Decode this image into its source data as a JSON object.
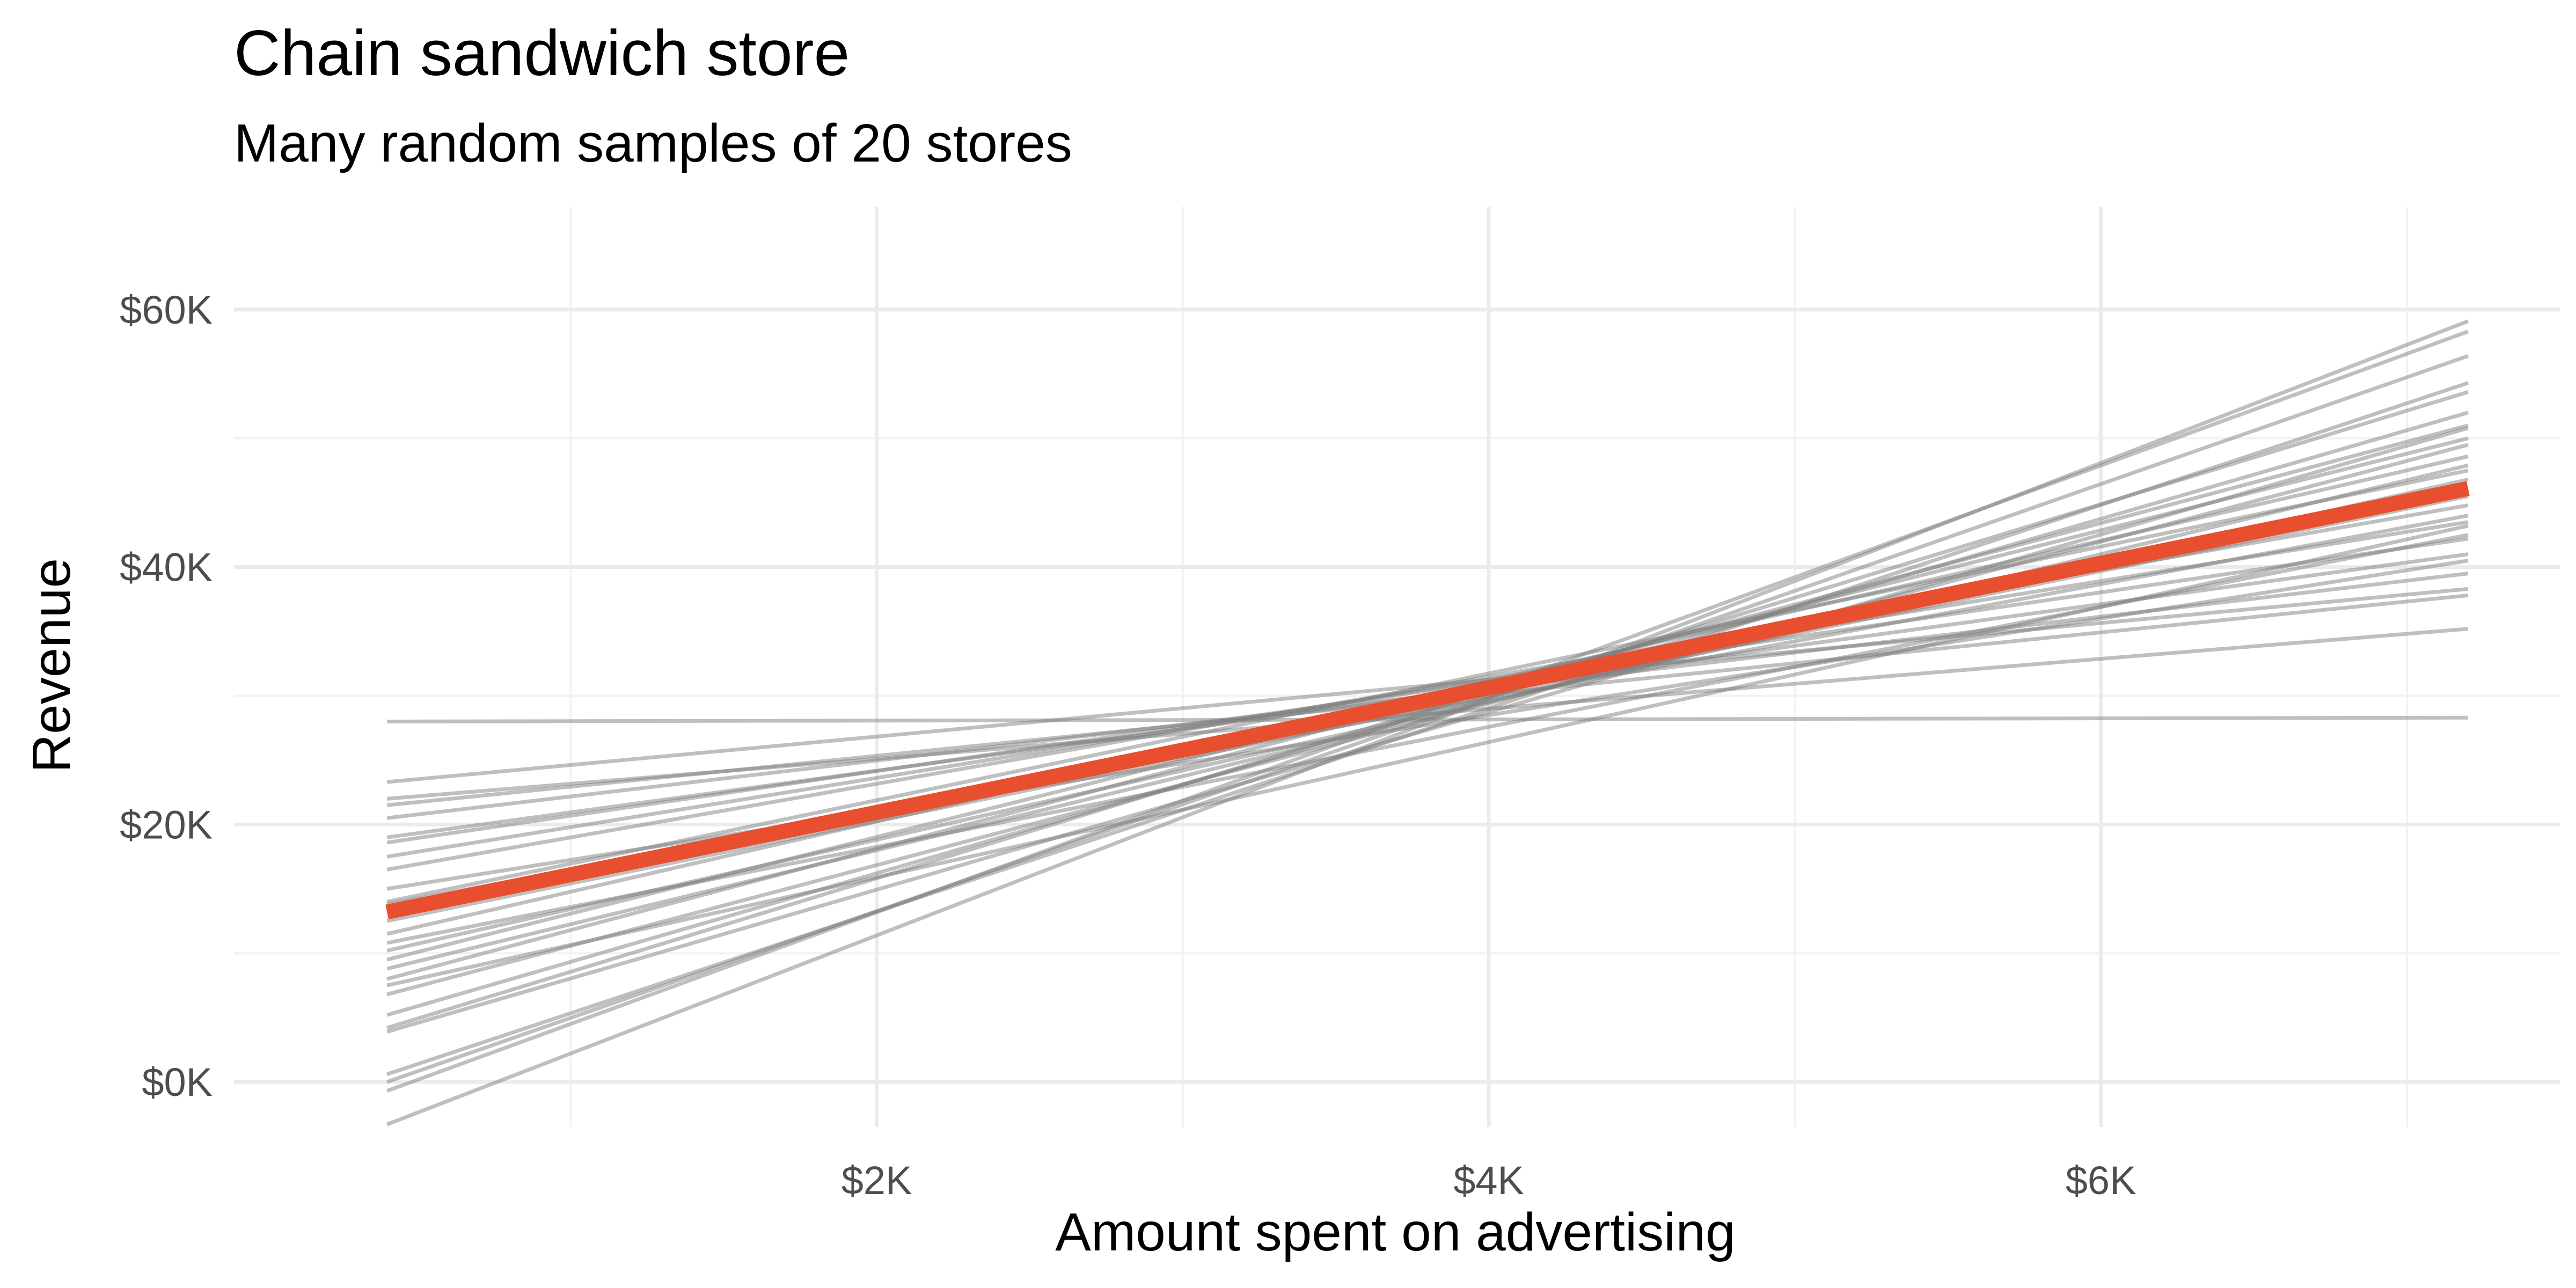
{
  "chart_data": {
    "type": "line",
    "title": "Chain sandwich store",
    "subtitle": "Many random samples of 20 stores",
    "xlabel": "Amount spent on advertising",
    "ylabel": "Revenue",
    "xlim": [
      -100,
      7500
    ],
    "ylim": [
      -3500,
      68000
    ],
    "x_ticks": [
      2000,
      4000,
      6000
    ],
    "x_tick_labels": [
      "$2K",
      "$4K",
      "$6K"
    ],
    "y_ticks": [
      0,
      20000,
      40000,
      60000
    ],
    "y_tick_labels": [
      "$0K",
      "$20K",
      "$40K",
      "$60K"
    ],
    "grid": true,
    "colors": {
      "fitted": "#E84F2F",
      "samples": "#808080"
    },
    "fitted_line": {
      "x": [
        400,
        7200
      ],
      "y": [
        13200,
        46100
      ]
    },
    "sample_lines": [
      {
        "x": [
          400,
          7200
        ],
        "y": [
          28000,
          28300
        ]
      },
      {
        "x": [
          400,
          7200
        ],
        "y": [
          23300,
          38300
        ]
      },
      {
        "x": [
          400,
          7200
        ],
        "y": [
          22000,
          35200
        ]
      },
      {
        "x": [
          400,
          7200
        ],
        "y": [
          21500,
          37800
        ]
      },
      {
        "x": [
          400,
          7200
        ],
        "y": [
          19000,
          41000
        ]
      },
      {
        "x": [
          400,
          7200
        ],
        "y": [
          18600,
          42200
        ]
      },
      {
        "x": [
          400,
          7200
        ],
        "y": [
          17500,
          43500
        ]
      },
      {
        "x": [
          400,
          7200
        ],
        "y": [
          16500,
          44800
        ]
      },
      {
        "x": [
          400,
          7200
        ],
        "y": [
          15000,
          40500
        ]
      },
      {
        "x": [
          400,
          7200
        ],
        "y": [
          14000,
          47500
        ]
      },
      {
        "x": [
          400,
          7200
        ],
        "y": [
          12500,
          45500
        ]
      },
      {
        "x": [
          400,
          7200
        ],
        "y": [
          11500,
          48600
        ]
      },
      {
        "x": [
          400,
          7200
        ],
        "y": [
          10200,
          46800
        ]
      },
      {
        "x": [
          400,
          7200
        ],
        "y": [
          9500,
          50000
        ]
      },
      {
        "x": [
          400,
          7200
        ],
        "y": [
          8800,
          47900
        ]
      },
      {
        "x": [
          400,
          7200
        ],
        "y": [
          8000,
          51000
        ]
      },
      {
        "x": [
          400,
          7200
        ],
        "y": [
          7500,
          43200
        ]
      },
      {
        "x": [
          400,
          7200
        ],
        "y": [
          6800,
          49500
        ]
      },
      {
        "x": [
          400,
          7200
        ],
        "y": [
          5200,
          52000
        ]
      },
      {
        "x": [
          400,
          7200
        ],
        "y": [
          4200,
          53600
        ]
      },
      {
        "x": [
          400,
          7200
        ],
        "y": [
          3900,
          50800
        ]
      },
      {
        "x": [
          400,
          7200
        ],
        "y": [
          600,
          54300
        ]
      },
      {
        "x": [
          400,
          7200
        ],
        "y": [
          0,
          56400
        ]
      },
      {
        "x": [
          400,
          7200
        ],
        "y": [
          -700,
          58300
        ]
      },
      {
        "x": [
          400,
          7200
        ],
        "y": [
          -3300,
          59100
        ]
      },
      {
        "x": [
          400,
          7200
        ],
        "y": [
          13800,
          44000
        ]
      },
      {
        "x": [
          400,
          7200
        ],
        "y": [
          20500,
          39500
        ]
      },
      {
        "x": [
          400,
          7200
        ],
        "y": [
          10800,
          42500
        ]
      }
    ]
  }
}
